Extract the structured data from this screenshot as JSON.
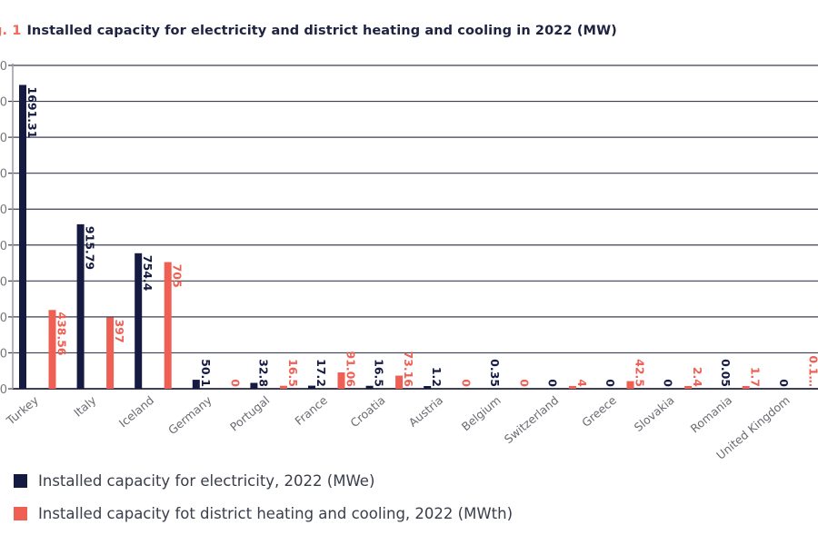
{
  "title": {
    "prefix": "g. 1",
    "text": "Installed capacity for electricity and district heating and cooling in 2022 (MW)"
  },
  "colors": {
    "electricity": "#141a40",
    "heating": "#ef5f53",
    "grid": "#3c3f55",
    "axis_text": "#777777"
  },
  "chart_data": {
    "type": "bar",
    "title": "Installed capacity for electricity and district heating and cooling in 2022 (MW)",
    "xlabel": "",
    "ylabel": "",
    "ylim": [
      0,
      1800
    ],
    "ytick_step": 200,
    "grid": true,
    "legend_position": "bottom-left",
    "categories": [
      "Turkey",
      "Italy",
      "Iceland",
      "Germany",
      "Portugal",
      "France",
      "Croatia",
      "Austria",
      "Belgium",
      "Switzerland",
      "Greece",
      "Slovakia",
      "Romania",
      "United Kingdom"
    ],
    "series": [
      {
        "name": "Installed capacity for electricity, 2022 (MWe)",
        "color": "#141a40",
        "values": [
          1691.31,
          915.79,
          754.4,
          50.1,
          32.8,
          17.2,
          16.5,
          1.2,
          0.35,
          0,
          0,
          0,
          0.05,
          0
        ],
        "labels": [
          "1691.31",
          "915.79",
          "754.4",
          "50.1",
          "32.8",
          "17.2",
          "16.5",
          "1.2",
          "0.35",
          "0",
          "0",
          "0",
          "0.05",
          "0"
        ]
      },
      {
        "name": "Installed capacity fot district heating and cooling, 2022 (MWth)",
        "color": "#ef5f53",
        "values": [
          438.56,
          397,
          705,
          0,
          16.5,
          91.06,
          73.16,
          0,
          0,
          4,
          42.5,
          2.4,
          1.7,
          null
        ],
        "labels": [
          "438.56",
          "397",
          "705",
          "0",
          "16.5",
          "91.06",
          "73.16",
          "0",
          "0",
          "4",
          "42.5",
          "2.4",
          "1.7",
          "0.1…"
        ]
      }
    ],
    "notes": "United Kingdom heating label is clipped at the right edge; its value is not fully legible."
  },
  "legend": [
    {
      "label": "Installed capacity for electricity, 2022 (MWe)",
      "color": "#141a40"
    },
    {
      "label": "Installed capacity fot district heating and cooling, 2022 (MWth)",
      "color": "#ef5f53"
    }
  ]
}
